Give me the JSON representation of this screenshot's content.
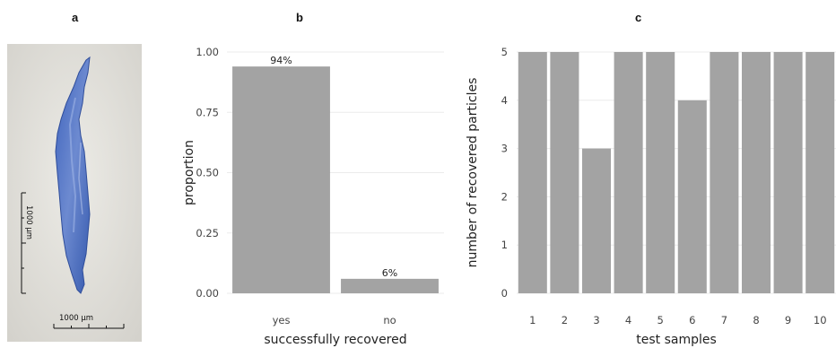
{
  "panels": {
    "a": {
      "letter": "a",
      "scale_bar_vertical": "1000 µm",
      "scale_bar_horizontal": "1000 µm"
    },
    "b": {
      "letter": "b"
    },
    "c": {
      "letter": "c"
    }
  },
  "colors": {
    "bar": "#a3a3a3",
    "grid": "#ebebeb",
    "particle": "#4a6cc0"
  },
  "chart_data": [
    {
      "id": "b",
      "type": "bar",
      "categories": [
        "yes",
        "no"
      ],
      "values": [
        0.94,
        0.06
      ],
      "data_labels": [
        "94%",
        "6%"
      ],
      "xlabel": "successfully recovered",
      "ylabel": "proportion",
      "ylim": [
        0,
        1
      ],
      "yticks": [
        0,
        0.25,
        0.5,
        0.75,
        1
      ],
      "ytick_labels": [
        "0.00",
        "0.25",
        "0.50",
        "0.75",
        "1.00"
      ],
      "grid": true
    },
    {
      "id": "c",
      "type": "bar",
      "categories": [
        "1",
        "2",
        "3",
        "4",
        "5",
        "6",
        "7",
        "8",
        "9",
        "10"
      ],
      "values": [
        5,
        5,
        3,
        5,
        5,
        4,
        5,
        5,
        5,
        5
      ],
      "xlabel": "test samples",
      "ylabel": "number of recovered particles",
      "ylim": [
        0,
        5
      ],
      "yticks": [
        0,
        1,
        2,
        3,
        4,
        5
      ],
      "ytick_labels": [
        "0",
        "1",
        "2",
        "3",
        "4",
        "5"
      ],
      "grid": true
    }
  ]
}
